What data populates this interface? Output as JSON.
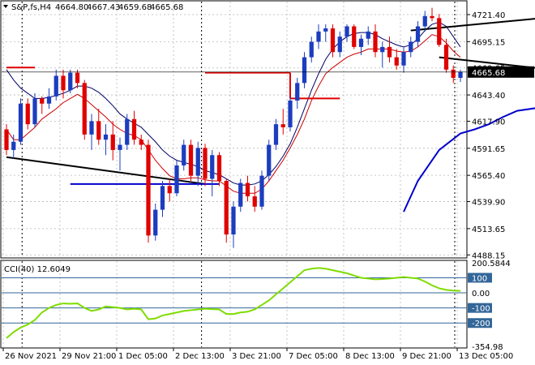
{
  "header": {
    "symbol": "S&P,fs,H4",
    "open": "4664.80",
    "high": "4667.43",
    "low": "4659.68",
    "close": "4665.68"
  },
  "indicator": {
    "label": "CCI(40) 12.6049",
    "max_label": "200.5844"
  },
  "colors": {
    "bull": "#1c3dbf",
    "bear": "#e00000",
    "fast_ma": "#cc0000",
    "slow_ma": "#000066",
    "trend": "#0000cc",
    "cci": "#7fdc00",
    "cci_level": "#336699",
    "price_box": "#000000"
  },
  "chart_data": [
    {
      "type": "candlestick",
      "x_ticks": [
        "26 Nov 2021",
        "29 Nov 21:00",
        "1 Dec 05:00",
        "2 Dec 13:00",
        "3 Dec 21:00",
        "7 Dec 05:00",
        "8 Dec 13:00",
        "9 Dec 21:00",
        "13 Dec 05:00"
      ],
      "y_ticks": [
        4488.15,
        4513.65,
        4539.9,
        4565.4,
        4591.65,
        4617.9,
        4643.4,
        4669.65,
        4695.15,
        4721.4
      ],
      "ylim": [
        4486,
        4734
      ],
      "current_price": 4665.68,
      "candles": [
        [
          4610,
          4615,
          4585,
          4590
        ],
        [
          4590,
          4605,
          4582,
          4598
        ],
        [
          4598,
          4640,
          4595,
          4635
        ],
        [
          4635,
          4640,
          4610,
          4615
        ],
        [
          4615,
          4645,
          4612,
          4640
        ],
        [
          4640,
          4642,
          4625,
          4635
        ],
        [
          4635,
          4650,
          4630,
          4642
        ],
        [
          4642,
          4668,
          4638,
          4662
        ],
        [
          4662,
          4668,
          4640,
          4648
        ],
        [
          4648,
          4668,
          4645,
          4665
        ],
        [
          4665,
          4668,
          4650,
          4655
        ],
        [
          4655,
          4658,
          4600,
          4605
        ],
        [
          4605,
          4625,
          4590,
          4618
        ],
        [
          4618,
          4630,
          4595,
          4600
        ],
        [
          4600,
          4615,
          4585,
          4605
        ],
        [
          4605,
          4618,
          4580,
          4590
        ],
        [
          4590,
          4602,
          4570,
          4595
        ],
        [
          4595,
          4625,
          4590,
          4620
        ],
        [
          4620,
          4628,
          4595,
          4600
        ],
        [
          4600,
          4605,
          4590,
          4595
        ],
        [
          4595,
          4600,
          4500,
          4507
        ],
        [
          4507,
          4538,
          4502,
          4532
        ],
        [
          4532,
          4560,
          4525,
          4555
        ],
        [
          4555,
          4562,
          4540,
          4548
        ],
        [
          4548,
          4580,
          4545,
          4575
        ],
        [
          4575,
          4600,
          4570,
          4595
        ],
        [
          4595,
          4600,
          4560,
          4565
        ],
        [
          4565,
          4598,
          4555,
          4592
        ],
        [
          4592,
          4596,
          4555,
          4562
        ],
        [
          4562,
          4590,
          4545,
          4585
        ],
        [
          4585,
          4588,
          4555,
          4560
        ],
        [
          4560,
          4562,
          4500,
          4508
        ],
        [
          4508,
          4540,
          4495,
          4535
        ],
        [
          4535,
          4562,
          4530,
          4558
        ],
        [
          4558,
          4565,
          4540,
          4545
        ],
        [
          4545,
          4555,
          4530,
          4535
        ],
        [
          4535,
          4570,
          4532,
          4565
        ],
        [
          4565,
          4600,
          4560,
          4595
        ],
        [
          4595,
          4620,
          4590,
          4615
        ],
        [
          4615,
          4630,
          4605,
          4612
        ],
        [
          4612,
          4642,
          4608,
          4638
        ],
        [
          4638,
          4660,
          4630,
          4655
        ],
        [
          4655,
          4685,
          4650,
          4680
        ],
        [
          4680,
          4700,
          4675,
          4695
        ],
        [
          4695,
          4712,
          4688,
          4705
        ],
        [
          4705,
          4712,
          4695,
          4708
        ],
        [
          4708,
          4712,
          4680,
          4685
        ],
        [
          4685,
          4705,
          4680,
          4700
        ],
        [
          4700,
          4712,
          4695,
          4710
        ],
        [
          4710,
          4712,
          4688,
          4690
        ],
        [
          4690,
          4702,
          4682,
          4698
        ],
        [
          4698,
          4710,
          4692,
          4705
        ],
        [
          4705,
          4712,
          4680,
          4685
        ],
        [
          4685,
          4695,
          4670,
          4690
        ],
        [
          4690,
          4700,
          4675,
          4680
        ],
        [
          4680,
          4688,
          4668,
          4672
        ],
        [
          4672,
          4690,
          4665,
          4685
        ],
        [
          4685,
          4700,
          4680,
          4695
        ],
        [
          4695,
          4715,
          4690,
          4710
        ],
        [
          4710,
          4725,
          4705,
          4720
        ],
        [
          4720,
          4728,
          4715,
          4718
        ],
        [
          4718,
          4722,
          4690,
          4692
        ],
        [
          4692,
          4698,
          4665,
          4668
        ],
        [
          4668,
          4672,
          4655,
          4660
        ],
        [
          4660,
          4668,
          4656,
          4666
        ]
      ],
      "fast_ma": [
        4610,
        4600,
        4600,
        4606,
        4612,
        4620,
        4625,
        4630,
        4636,
        4640,
        4644,
        4640,
        4634,
        4628,
        4622,
        4615,
        4610,
        4606,
        4604,
        4600,
        4590,
        4580,
        4572,
        4565,
        4562,
        4562,
        4563,
        4563,
        4561,
        4560,
        4560,
        4555,
        4550,
        4548,
        4548,
        4548,
        4552,
        4560,
        4570,
        4580,
        4592,
        4605,
        4620,
        4638,
        4652,
        4664,
        4670,
        4675,
        4680,
        4683,
        4685,
        4688,
        4688,
        4688,
        4688,
        4686,
        4685,
        4686,
        4690,
        4696,
        4702,
        4700,
        4694,
        4686,
        4680
      ],
      "slow_ma": [
        4668,
        4658,
        4650,
        4645,
        4640,
        4640,
        4641,
        4643,
        4645,
        4648,
        4652,
        4652,
        4650,
        4646,
        4640,
        4633,
        4625,
        4620,
        4616,
        4612,
        4605,
        4598,
        4590,
        4584,
        4580,
        4578,
        4576,
        4574,
        4570,
        4568,
        4566,
        4562,
        4558,
        4556,
        4556,
        4557,
        4560,
        4566,
        4574,
        4584,
        4596,
        4612,
        4630,
        4648,
        4664,
        4678,
        4688,
        4695,
        4700,
        4703,
        4704,
        4704,
        4702,
        4698,
        4695,
        4692,
        4690,
        4692,
        4698,
        4706,
        4712,
        4714,
        4710,
        4700,
        4690
      ],
      "trend_steps": [
        {
          "from": 0,
          "to": 4,
          "value": 4670
        },
        {
          "from": 28,
          "to": 40,
          "value": 4665
        },
        {
          "from": 40,
          "to": 47,
          "value": 4640
        }
      ],
      "trend_ramp": [
        [
          56,
          4530
        ],
        [
          58,
          4560
        ],
        [
          61,
          4590
        ],
        [
          64,
          4606
        ],
        [
          66,
          4610
        ],
        [
          68,
          4615
        ],
        [
          70,
          4622
        ],
        [
          72,
          4628
        ],
        [
          76,
          4632
        ],
        [
          78,
          4635
        ],
        [
          82,
          4640
        ],
        [
          84,
          4643
        ],
        [
          86,
          4650
        ],
        [
          88,
          4658
        ],
        [
          90,
          4665
        ]
      ],
      "channel_lines": [
        [
          [
            0,
            4583
          ],
          [
            28,
            4557
          ]
        ],
        [
          [
            57,
            4706
          ],
          [
            91,
            4728
          ]
        ],
        [
          [
            61,
            4680
          ],
          [
            94,
            4655
          ]
        ]
      ],
      "support_segment": [
        [
          9,
          4557
        ],
        [
          30,
          4557
        ]
      ]
    },
    {
      "type": "line",
      "name": "CCI(40)",
      "y_ticks": [
        200.5844,
        100,
        0.0,
        -100,
        -200,
        -354.98
      ],
      "levels": [
        100,
        0,
        -100,
        -200
      ],
      "ylim": [
        -360,
        210
      ],
      "values": [
        -300,
        -260,
        -230,
        -210,
        -180,
        -130,
        -100,
        -80,
        -70,
        -72,
        -70,
        -100,
        -120,
        -110,
        -90,
        -95,
        -100,
        -110,
        -105,
        -110,
        -175,
        -170,
        -150,
        -140,
        -130,
        -120,
        -115,
        -110,
        -105,
        -108,
        -110,
        -140,
        -140,
        -130,
        -125,
        -110,
        -80,
        -50,
        -10,
        30,
        70,
        110,
        150,
        160,
        165,
        160,
        150,
        140,
        130,
        115,
        100,
        95,
        90,
        92,
        95,
        100,
        105,
        100,
        95,
        75,
        50,
        30,
        20,
        15,
        13
      ]
    }
  ]
}
